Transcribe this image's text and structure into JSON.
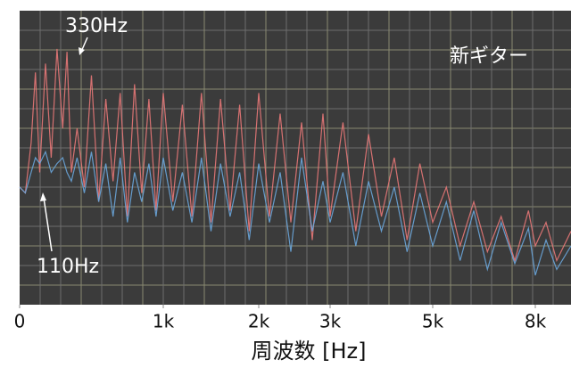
{
  "chart_data": {
    "type": "line",
    "x_label": "周波数 [Hz]",
    "annotations": [
      "330Hz",
      "110Hz",
      "新ギター"
    ],
    "x": [
      0,
      40,
      80,
      110,
      140,
      180,
      220,
      260,
      300,
      330,
      360,
      400,
      450,
      500,
      550,
      600,
      650,
      700,
      750,
      800,
      850,
      900,
      950,
      1000,
      1100,
      1200,
      1300,
      1400,
      1500,
      1600,
      1700,
      1800,
      1900,
      2000,
      2150,
      2300,
      2450,
      2600,
      2750,
      2900,
      3000,
      3250,
      3500,
      3750,
      4000,
      4250,
      4500,
      4750,
      5000,
      5400,
      5800,
      6200,
      6600,
      7000,
      7400,
      7800,
      8000,
      8300,
      8600,
      9000
    ],
    "series": [
      {
        "color": "#e87878",
        "values": [
          40,
          38,
          55,
          79,
          45,
          82,
          50,
          87,
          60,
          86,
          45,
          60,
          40,
          78,
          35,
          70,
          42,
          72,
          30,
          75,
          38,
          70,
          32,
          72,
          35,
          68,
          30,
          72,
          28,
          70,
          32,
          68,
          25,
          72,
          30,
          65,
          28,
          62,
          22,
          65,
          30,
          62,
          25,
          58,
          30,
          50,
          22,
          48,
          28,
          40,
          20,
          35,
          18,
          30,
          15,
          32,
          20,
          28,
          15,
          25
        ]
      },
      {
        "color": "#6aa6dc",
        "values": [
          40,
          38,
          45,
          50,
          48,
          52,
          45,
          48,
          50,
          45,
          42,
          50,
          38,
          52,
          35,
          48,
          30,
          50,
          28,
          45,
          35,
          48,
          30,
          50,
          32,
          45,
          28,
          50,
          25,
          48,
          30,
          45,
          22,
          48,
          28,
          45,
          18,
          50,
          25,
          42,
          28,
          45,
          20,
          42,
          25,
          40,
          18,
          38,
          20,
          35,
          15,
          32,
          12,
          28,
          14,
          26,
          10,
          22,
          12,
          20
        ]
      }
    ],
    "xlim": [
      0,
      9000
    ],
    "xticks": [
      0,
      {
        "value": 1000,
        "label": "1k"
      },
      {
        "value": 2000,
        "label": "2k"
      },
      {
        "value": 3000,
        "label": "3k"
      },
      {
        "value": 5000,
        "label": "5k"
      },
      {
        "value": 8000,
        "label": "8k"
      }
    ],
    "ylim": [
      0,
      100
    ],
    "grid": true
  }
}
